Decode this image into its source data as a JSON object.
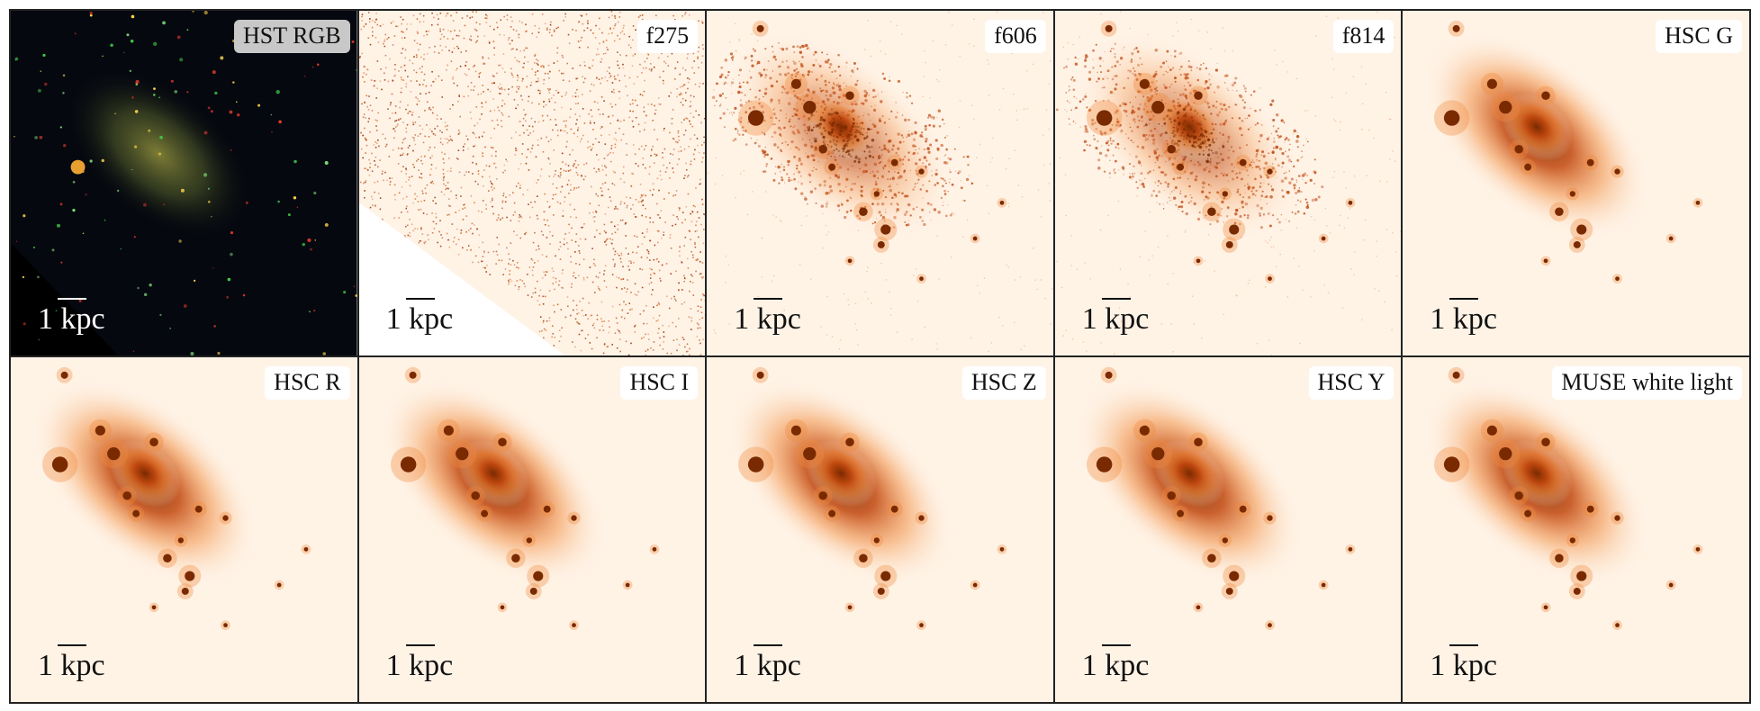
{
  "figure": {
    "panels": [
      {
        "id": "hst-rgb",
        "label": "HST RGB",
        "scale": "1 kpc",
        "style": "rgb"
      },
      {
        "id": "f275",
        "label": "f275",
        "scale": "1 kpc",
        "style": "noise"
      },
      {
        "id": "f606",
        "label": "f606",
        "scale": "1 kpc",
        "style": "galaxy-grainy"
      },
      {
        "id": "f814",
        "label": "f814",
        "scale": "1 kpc",
        "style": "galaxy-grainy"
      },
      {
        "id": "hsc-g",
        "label": "HSC G",
        "scale": "1 kpc",
        "style": "galaxy-smooth"
      },
      {
        "id": "hsc-r",
        "label": "HSC R",
        "scale": "1 kpc",
        "style": "galaxy-smooth"
      },
      {
        "id": "hsc-i",
        "label": "HSC I",
        "scale": "1 kpc",
        "style": "galaxy-smooth"
      },
      {
        "id": "hsc-z",
        "label": "HSC Z",
        "scale": "1 kpc",
        "style": "galaxy-smooth"
      },
      {
        "id": "hsc-y",
        "label": "HSC Y",
        "scale": "1 kpc",
        "style": "galaxy-smooth"
      },
      {
        "id": "muse-white",
        "label": "MUSE white light",
        "scale": "1 kpc",
        "style": "galaxy-smooth"
      }
    ],
    "colors": {
      "colormap_light": "#fff3e6",
      "colormap_mid": "#f08a3c",
      "colormap_dark": "#7a2a00",
      "rgb_background": "#06080f"
    }
  }
}
